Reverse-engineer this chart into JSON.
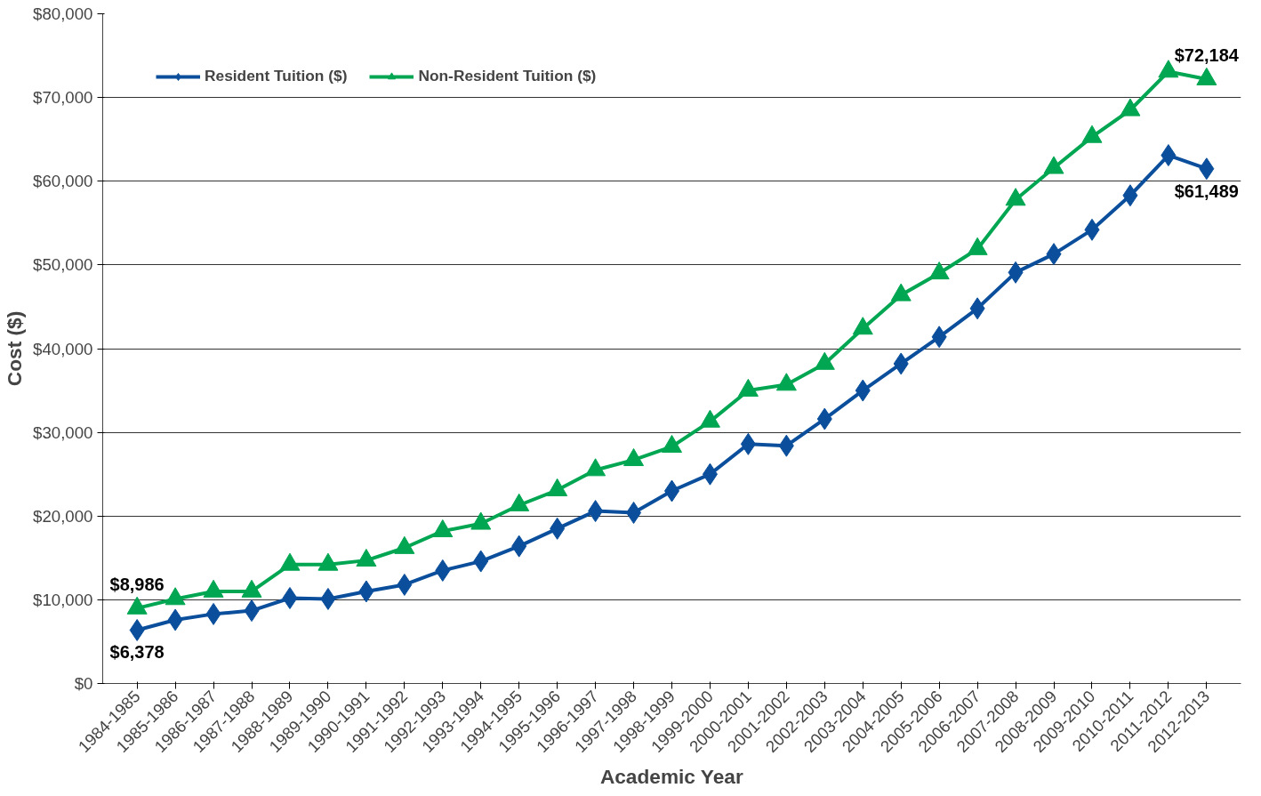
{
  "chart_data": {
    "type": "line",
    "xlabel": "Academic Year",
    "ylabel": "Cost ($)",
    "categories": [
      "1984-1985",
      "1985-1986",
      "1986-1987",
      "1987-1988",
      "1988-1989",
      "1989-1990",
      "1990-1991",
      "1991-1992",
      "1992-1993",
      "1993-1994",
      "1994-1995",
      "1995-1996",
      "1996-1997",
      "1997-1998",
      "1998-1999",
      "1999-2000",
      "2000-2001",
      "2001-2002",
      "2002-2003",
      "2003-2004",
      "2004-2005",
      "2005-2006",
      "2006-2007",
      "2007-2008",
      "2008-2009",
      "2009-2010",
      "2010-2011",
      "2011-2012",
      "2012-2013"
    ],
    "series": [
      {
        "name": "Resident Tuition ($)",
        "color": "#0b4f9c",
        "marker": "diamond",
        "values": [
          6378,
          7600,
          8300,
          8700,
          10200,
          10100,
          11000,
          11800,
          13500,
          14600,
          16400,
          18500,
          20600,
          20400,
          23000,
          25000,
          28600,
          28400,
          31600,
          35000,
          38200,
          41400,
          44800,
          49100,
          51300,
          54200,
          58300,
          63100,
          61489
        ],
        "value_labels": [
          "$6,378",
          null,
          null,
          null,
          null,
          null,
          null,
          null,
          null,
          null,
          null,
          null,
          null,
          null,
          null,
          null,
          null,
          null,
          null,
          null,
          null,
          null,
          null,
          null,
          null,
          null,
          null,
          null,
          "$61,489"
        ]
      },
      {
        "name": "Non-Resident Tuition ($)",
        "color": "#00a651",
        "marker": "triangle",
        "values": [
          8986,
          10100,
          11000,
          11000,
          14200,
          14200,
          14700,
          16200,
          18200,
          19100,
          21300,
          23100,
          25500,
          26700,
          28300,
          31300,
          35000,
          35700,
          38200,
          42400,
          46400,
          49000,
          51900,
          57800,
          61600,
          65300,
          68500,
          73100,
          72184
        ],
        "value_labels": [
          "$8,986",
          null,
          null,
          null,
          null,
          null,
          null,
          null,
          null,
          null,
          null,
          null,
          null,
          null,
          null,
          null,
          null,
          null,
          null,
          null,
          null,
          null,
          null,
          null,
          null,
          null,
          null,
          null,
          "$72,184"
        ]
      }
    ],
    "ylim": [
      0,
      80000
    ],
    "yticks": [
      {
        "value": 0,
        "label": "$0"
      },
      {
        "value": 10000,
        "label": "$10,000"
      },
      {
        "value": 20000,
        "label": "$20,000"
      },
      {
        "value": 30000,
        "label": "$30,000"
      },
      {
        "value": 40000,
        "label": "$40,000"
      },
      {
        "value": 50000,
        "label": "$50,000"
      },
      {
        "value": 60000,
        "label": "$60,000"
      },
      {
        "value": 70000,
        "label": "$70,000"
      },
      {
        "value": 80000,
        "label": "$80,000"
      }
    ],
    "grid": "y",
    "legend": "top left",
    "line_style": "solid"
  }
}
